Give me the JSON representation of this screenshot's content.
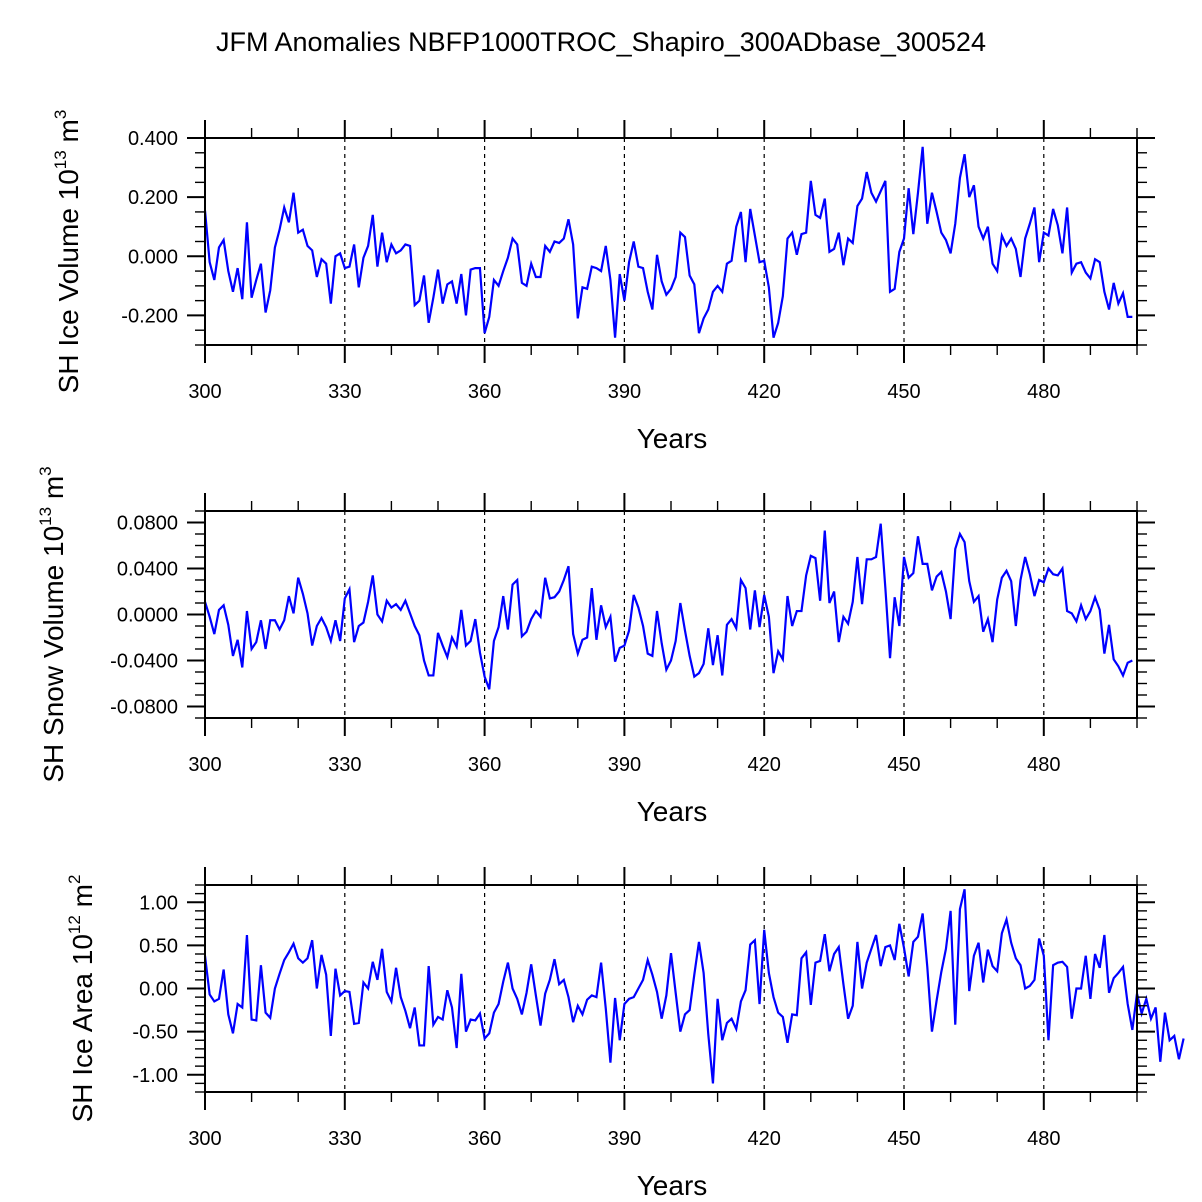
{
  "title": "JFM Anomalies NBFP1000TROC_Shapiro_300ADbase_300524",
  "chart_data": [
    {
      "type": "line",
      "title": "JFM Anomalies NBFP1000TROC_Shapiro_300ADbase_300524",
      "xlabel": "Years",
      "ylabel": {
        "base": "SH Ice Volume 10",
        "exp": "13",
        "unit": " m",
        "unit_exp": "3"
      },
      "xlim": [
        300,
        500
      ],
      "ylim": [
        -0.3,
        0.4
      ],
      "x_major_ticks": [
        300,
        330,
        360,
        390,
        420,
        450,
        480
      ],
      "x_tick_labels": [
        "300",
        "330",
        "360",
        "390",
        "420",
        "450",
        "480"
      ],
      "x_minor_step": 10,
      "y_major_ticks": [
        -0.2,
        0.0,
        0.2,
        0.4
      ],
      "y_tick_labels": [
        "-0.200",
        "0.000",
        "0.200",
        "0.400"
      ],
      "y_minor_step": 0.05,
      "grid": "vertical dashed lines at major x ticks",
      "line_color": "#0000ff",
      "x_start": 300,
      "x_step": 1,
      "series": [
        {
          "name": "SH Ice Volume",
          "values": [
            0.155,
            -0.02,
            -0.08,
            0.03,
            0.055,
            -0.05,
            -0.12,
            -0.04,
            -0.145,
            0.115,
            -0.14,
            -0.08,
            -0.025,
            -0.19,
            -0.115,
            0.03,
            0.09,
            0.165,
            0.115,
            0.215,
            0.08,
            0.09,
            0.035,
            0.02,
            -0.07,
            -0.01,
            -0.025,
            -0.16,
            0.0,
            0.01,
            -0.04,
            -0.035,
            0.04,
            -0.105,
            -0.005,
            0.035,
            0.14,
            -0.035,
            0.08,
            -0.02,
            0.04,
            0.01,
            0.02,
            0.04,
            0.035,
            -0.165,
            -0.15,
            -0.065,
            -0.225,
            -0.14,
            -0.045,
            -0.16,
            -0.095,
            -0.085,
            -0.16,
            -0.06,
            -0.2,
            -0.045,
            -0.04,
            -0.04,
            -0.26,
            -0.205,
            -0.08,
            -0.1,
            -0.05,
            -0.005,
            0.06,
            0.04,
            -0.09,
            -0.1,
            -0.025,
            -0.07,
            -0.07,
            0.035,
            0.015,
            0.05,
            0.045,
            0.06,
            0.125,
            0.04,
            -0.21,
            -0.105,
            -0.11,
            -0.035,
            -0.04,
            -0.05,
            0.035,
            -0.08,
            -0.275,
            -0.06,
            -0.15,
            -0.02,
            0.05,
            -0.035,
            -0.04,
            -0.12,
            -0.18,
            0.005,
            -0.085,
            -0.13,
            -0.11,
            -0.07,
            0.08,
            0.065,
            -0.065,
            -0.095,
            -0.26,
            -0.21,
            -0.18,
            -0.12,
            -0.1,
            -0.12,
            -0.025,
            -0.015,
            0.1,
            0.15,
            -0.02,
            0.16,
            0.07,
            -0.02,
            -0.015,
            -0.105,
            -0.275,
            -0.225,
            -0.135,
            0.06,
            0.08,
            0.005,
            0.075,
            0.08,
            0.255,
            0.14,
            0.13,
            0.195,
            0.015,
            0.025,
            0.08,
            -0.03,
            0.06,
            0.045,
            0.17,
            0.195,
            0.285,
            0.215,
            0.185,
            0.22,
            0.255,
            -0.12,
            -0.11,
            0.015,
            0.06,
            0.23,
            0.075,
            0.215,
            0.37,
            0.11,
            0.215,
            0.15,
            0.08,
            0.055,
            0.01,
            0.11,
            0.265,
            0.345,
            0.2,
            0.24,
            0.1,
            0.06,
            0.1,
            -0.025,
            -0.05,
            0.07,
            0.035,
            0.06,
            0.025,
            -0.07,
            0.06,
            0.11,
            0.165,
            -0.02,
            0.08,
            0.07,
            0.16,
            0.105,
            0.01,
            0.165,
            -0.055,
            -0.025,
            -0.02,
            -0.055,
            -0.075,
            -0.01,
            -0.02,
            -0.12,
            -0.18,
            -0.09,
            -0.16,
            -0.125,
            -0.205,
            -0.205
          ]
        }
      ]
    },
    {
      "type": "line",
      "xlabel": "Years",
      "ylabel": {
        "base": "SH Snow Volume 10",
        "exp": "13",
        "unit": " m",
        "unit_exp": "3"
      },
      "xlim": [
        300,
        500
      ],
      "ylim": [
        -0.09,
        0.09
      ],
      "x_major_ticks": [
        300,
        330,
        360,
        390,
        420,
        450,
        480
      ],
      "x_tick_labels": [
        "300",
        "330",
        "360",
        "390",
        "420",
        "450",
        "480"
      ],
      "x_minor_step": 10,
      "y_major_ticks": [
        -0.08,
        -0.04,
        0.0,
        0.04,
        0.08
      ],
      "y_tick_labels": [
        "-0.0800",
        "-0.0400",
        "0.0000",
        "0.0400",
        "0.0800"
      ],
      "y_minor_step": 0.01,
      "grid": "vertical dashed lines at major x ticks",
      "line_color": "#0000ff",
      "x_start": 300,
      "x_step": 1,
      "series": [
        {
          "name": "SH Snow Volume",
          "values": [
            0.011,
            -0.002,
            -0.017,
            0.004,
            0.008,
            -0.009,
            -0.036,
            -0.022,
            -0.046,
            0.003,
            -0.03,
            -0.024,
            -0.005,
            -0.03,
            -0.005,
            -0.005,
            -0.013,
            -0.005,
            0.016,
            0.001,
            0.032,
            0.018,
            0.001,
            -0.027,
            -0.01,
            -0.003,
            -0.011,
            -0.023,
            -0.005,
            -0.023,
            0.014,
            0.022,
            -0.024,
            -0.01,
            -0.007,
            0.011,
            0.034,
            0.0,
            -0.006,
            0.012,
            0.006,
            0.009,
            0.004,
            0.012,
            0.001,
            -0.01,
            -0.018,
            -0.04,
            -0.053,
            -0.053,
            -0.016,
            -0.027,
            -0.037,
            -0.02,
            -0.028,
            0.004,
            -0.027,
            -0.023,
            -0.004,
            -0.033,
            -0.054,
            -0.065,
            -0.023,
            -0.011,
            0.016,
            -0.013,
            0.026,
            0.03,
            -0.019,
            -0.015,
            -0.004,
            0.003,
            -0.002,
            0.032,
            0.014,
            0.015,
            0.02,
            0.03,
            0.042,
            -0.017,
            -0.034,
            -0.022,
            -0.02,
            0.023,
            -0.022,
            0.008,
            -0.011,
            -0.002,
            -0.041,
            -0.029,
            -0.027,
            -0.014,
            0.017,
            0.006,
            -0.01,
            -0.034,
            -0.036,
            0.003,
            -0.025,
            -0.048,
            -0.04,
            -0.023,
            0.01,
            -0.014,
            -0.036,
            -0.054,
            -0.051,
            -0.043,
            -0.012,
            -0.044,
            -0.018,
            -0.053,
            -0.009,
            -0.004,
            -0.012,
            0.03,
            0.023,
            -0.013,
            0.021,
            -0.011,
            0.017,
            -0.002,
            -0.051,
            -0.032,
            -0.039,
            0.016,
            -0.01,
            0.003,
            0.003,
            0.034,
            0.051,
            0.049,
            0.012,
            0.073,
            0.01,
            0.02,
            -0.024,
            -0.002,
            -0.008,
            0.011,
            0.05,
            0.009,
            0.048,
            0.048,
            0.05,
            0.079,
            0.023,
            -0.038,
            0.015,
            -0.01,
            0.05,
            0.032,
            0.036,
            0.068,
            0.044,
            0.044,
            0.021,
            0.033,
            0.037,
            0.02,
            -0.004,
            0.057,
            0.07,
            0.063,
            0.029,
            0.011,
            0.016,
            -0.015,
            -0.004,
            -0.024,
            0.013,
            0.032,
            0.038,
            0.029,
            -0.01,
            0.03,
            0.05,
            0.035,
            0.016,
            0.03,
            0.028,
            0.04,
            0.035,
            0.034,
            0.04,
            0.003,
            0.001,
            -0.006,
            0.008,
            -0.004,
            0.003,
            0.015,
            0.004,
            -0.034,
            -0.009,
            -0.039,
            -0.045,
            -0.053,
            -0.042,
            -0.04
          ]
        }
      ]
    },
    {
      "type": "line",
      "xlabel": "Years",
      "ylabel": {
        "base": "SH Ice Area 10",
        "exp": "12",
        "unit": " m",
        "unit_exp": "2"
      },
      "xlim": [
        300,
        500
      ],
      "ylim": [
        -1.2,
        1.2
      ],
      "x_major_ticks": [
        300,
        330,
        360,
        390,
        420,
        450,
        480
      ],
      "x_tick_labels": [
        "300",
        "330",
        "360",
        "390",
        "420",
        "450",
        "480"
      ],
      "x_minor_step": 10,
      "y_major_ticks": [
        -1.0,
        -0.5,
        0.0,
        0.5,
        1.0
      ],
      "y_tick_labels": [
        "-1.00",
        "-0.50",
        "0.00",
        "0.50",
        "1.00"
      ],
      "y_minor_step": 0.1,
      "grid": "vertical dashed lines at major x ticks",
      "line_color": "#0000ff",
      "x_start": 300,
      "x_step": 1,
      "series": [
        {
          "name": "SH Ice Area",
          "values": [
            0.38,
            -0.07,
            -0.15,
            -0.12,
            0.22,
            -0.3,
            -0.52,
            -0.18,
            -0.22,
            0.62,
            -0.36,
            -0.37,
            0.27,
            -0.28,
            -0.34,
            0.0,
            0.17,
            0.33,
            0.42,
            0.52,
            0.35,
            0.3,
            0.35,
            0.56,
            0.0,
            0.39,
            0.16,
            -0.55,
            0.23,
            -0.08,
            -0.03,
            -0.04,
            -0.41,
            -0.4,
            0.07,
            0.0,
            0.31,
            0.1,
            0.46,
            -0.04,
            -0.15,
            0.24,
            -0.1,
            -0.26,
            -0.46,
            -0.22,
            -0.66,
            -0.66,
            0.26,
            -0.42,
            -0.33,
            -0.36,
            -0.02,
            -0.22,
            -0.69,
            0.17,
            -0.5,
            -0.36,
            -0.37,
            -0.29,
            -0.58,
            -0.52,
            -0.28,
            -0.18,
            0.08,
            0.3,
            0.0,
            -0.12,
            -0.3,
            -0.05,
            0.28,
            -0.08,
            -0.43,
            -0.06,
            0.1,
            0.34,
            0.05,
            0.1,
            -0.1,
            -0.39,
            -0.2,
            -0.3,
            -0.13,
            -0.08,
            -0.1,
            0.3,
            -0.23,
            -0.86,
            -0.11,
            -0.6,
            -0.18,
            -0.12,
            -0.1,
            0.0,
            0.1,
            0.33,
            0.16,
            -0.04,
            -0.35,
            -0.08,
            0.41,
            -0.05,
            -0.5,
            -0.3,
            -0.25,
            0.16,
            0.54,
            0.18,
            -0.53,
            -1.1,
            -0.12,
            -0.6,
            -0.4,
            -0.35,
            -0.47,
            -0.15,
            -0.02,
            0.51,
            0.56,
            -0.18,
            0.68,
            0.18,
            -0.1,
            -0.28,
            -0.33,
            -0.63,
            -0.3,
            -0.31,
            0.35,
            0.42,
            -0.19,
            0.3,
            0.32,
            0.63,
            0.2,
            0.4,
            0.48,
            0.05,
            -0.35,
            -0.2,
            0.54,
            0.0,
            0.3,
            0.46,
            0.62,
            0.26,
            0.48,
            0.5,
            0.33,
            0.75,
            0.47,
            0.14,
            0.54,
            0.6,
            0.87,
            0.25,
            -0.5,
            -0.14,
            0.19,
            0.46,
            0.9,
            -0.42,
            0.92,
            1.15,
            -0.03,
            0.38,
            0.53,
            0.07,
            0.45,
            0.26,
            0.2,
            0.64,
            0.8,
            0.53,
            0.35,
            0.27,
            0.0,
            0.03,
            0.1,
            0.58,
            0.38,
            -0.6,
            0.27,
            0.3,
            0.31,
            0.25,
            -0.35,
            0.0,
            0.0,
            0.38,
            -0.12,
            0.4,
            0.24,
            0.62,
            -0.05,
            0.12,
            0.18,
            0.25,
            -0.18,
            -0.48,
            -0.06,
            -0.29,
            -0.12,
            -0.35,
            -0.22,
            -0.85,
            -0.28,
            -0.6,
            -0.55,
            -0.82,
            -0.58
          ]
        }
      ]
    }
  ]
}
